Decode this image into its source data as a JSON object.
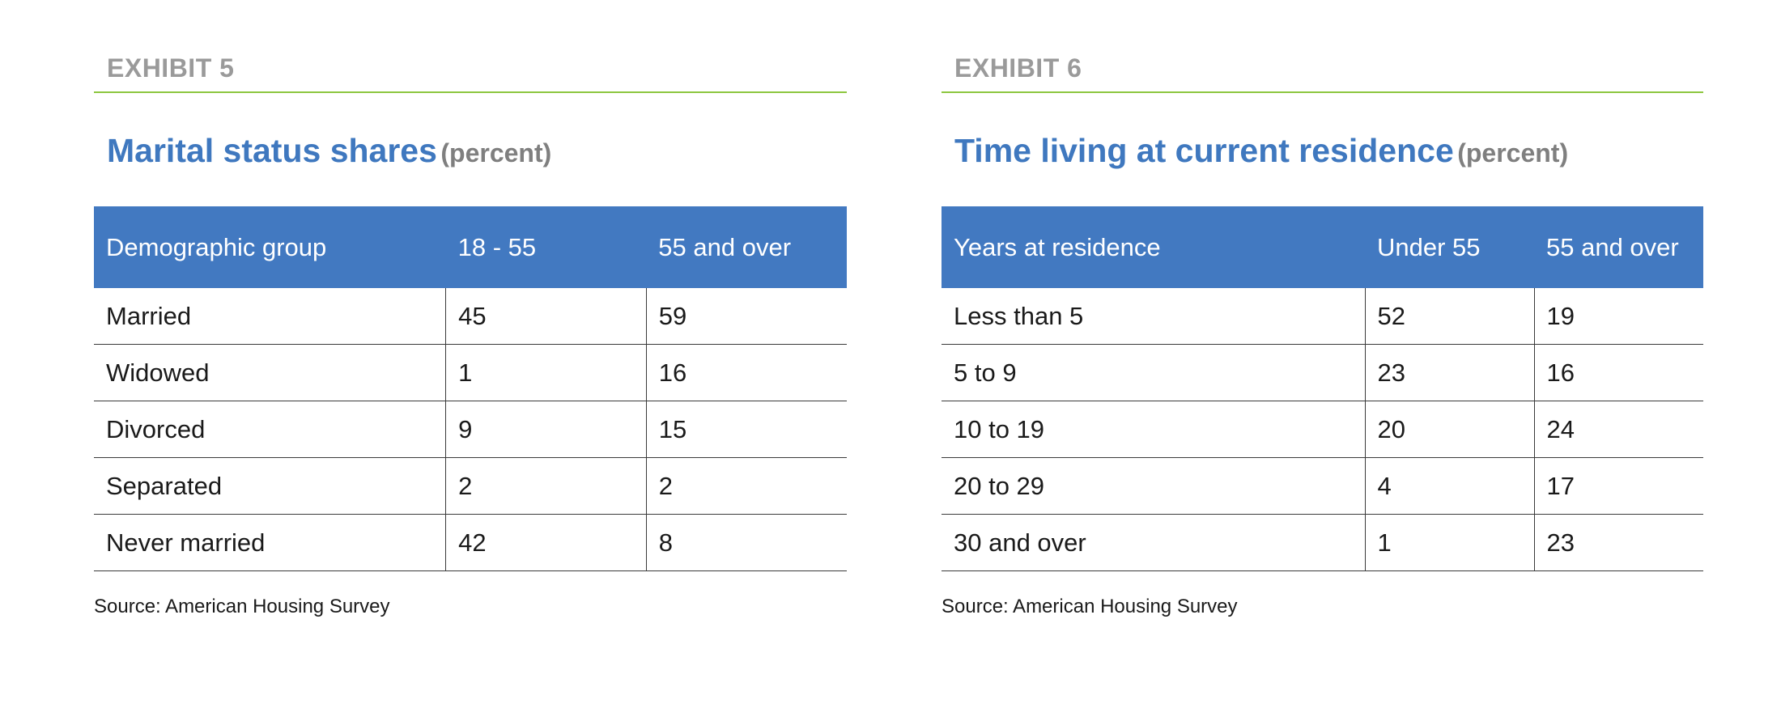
{
  "exhibits": [
    {
      "label": "EXHIBIT 5",
      "title": "Marital status shares",
      "title_unit": "(percent)",
      "columns": [
        "Demographic group",
        "18 - 55",
        "55 and over"
      ],
      "rows": [
        [
          "Married",
          "45",
          "59"
        ],
        [
          "Widowed",
          "1",
          "16"
        ],
        [
          "Divorced",
          "9",
          "15"
        ],
        [
          "Separated",
          "2",
          "2"
        ],
        [
          "Never married",
          "42",
          "8"
        ]
      ],
      "source": "Source: American Housing Survey"
    },
    {
      "label": "EXHIBIT 6",
      "title": "Time living at current residence",
      "title_unit": "(percent)",
      "columns": [
        "Years at residence",
        "Under 55",
        "55 and over"
      ],
      "rows": [
        [
          "Less than 5",
          "52",
          "19"
        ],
        [
          "5 to 9",
          "23",
          "16"
        ],
        [
          "10 to 19",
          "20",
          "24"
        ],
        [
          "20 to 29",
          "4",
          "17"
        ],
        [
          "30 and over",
          "1",
          "23"
        ]
      ],
      "source": "Source: American Housing Survey"
    }
  ],
  "colors": {
    "header_bg": "#4279c1",
    "title_blue": "#3f78bf",
    "rule_green": "#8cc63f",
    "exhibit_gray": "#9a9a9a"
  }
}
